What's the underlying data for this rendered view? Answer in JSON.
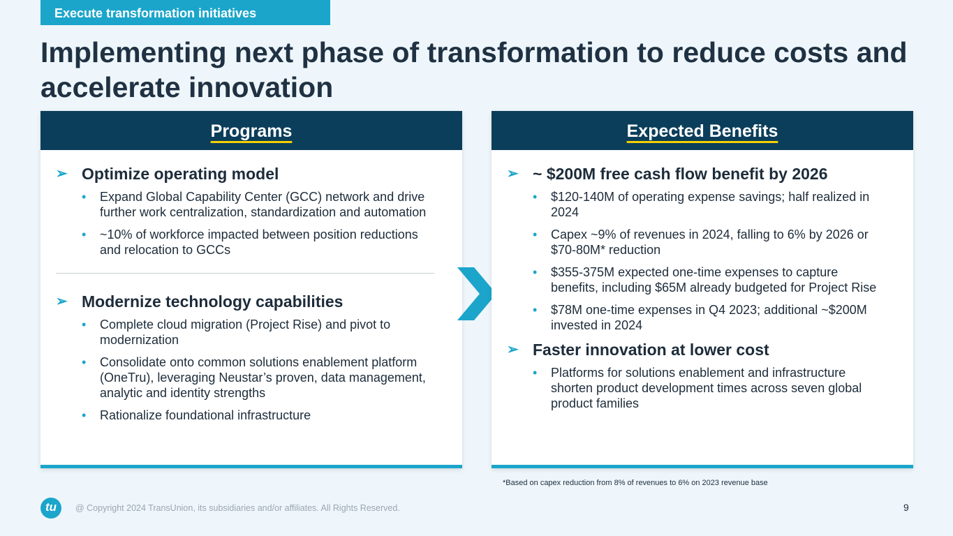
{
  "header": {
    "tab": "Execute transformation initiatives",
    "title": "Implementing next phase of transformation to reduce costs and accelerate innovation"
  },
  "panels": [
    {
      "heading": "Programs",
      "groups": [
        {
          "heading": "Optimize operating model",
          "bullets": [
            "Expand Global Capability Center (GCC) network and drive further work centralization, standardization and automation",
            "~10% of workforce impacted between position reductions and relocation to GCCs"
          ]
        },
        {
          "heading": "Modernize technology capabilities",
          "bullets": [
            "Complete cloud migration (Project Rise) and pivot to modernization",
            "Consolidate onto common solutions enablement platform (OneTru), leveraging Neustar’s proven, data management, analytic and identity strengths",
            "Rationalize foundational infrastructure"
          ]
        }
      ]
    },
    {
      "heading": "Expected Benefits",
      "groups": [
        {
          "heading": "~ $200M free cash flow benefit by 2026",
          "bullets": [
            "$120-140M of operating expense savings; half realized in 2024",
            "Capex ~9% of revenues in 2024, falling to 6% by 2026 or $70-80M* reduction",
            "$355-375M expected one-time expenses to capture benefits, including $65M already budgeted for Project Rise",
            "$78M one-time expenses in Q4 2023; additional ~$200M invested in 2024"
          ]
        },
        {
          "heading": "Faster innovation at lower cost",
          "bullets": [
            "Platforms for solutions enablement and infrastructure shorten product development times across seven global product families"
          ]
        }
      ]
    }
  ],
  "footer": {
    "footnote": "*Based on capex reduction from 8% of revenues to 6% on 2023 revenue base",
    "logo": "tu",
    "copyright": "@ Copyright 2024 TransUnion, its subsidiaries and/or affiliates.  All Rights Reserved.",
    "page_number": "9"
  }
}
